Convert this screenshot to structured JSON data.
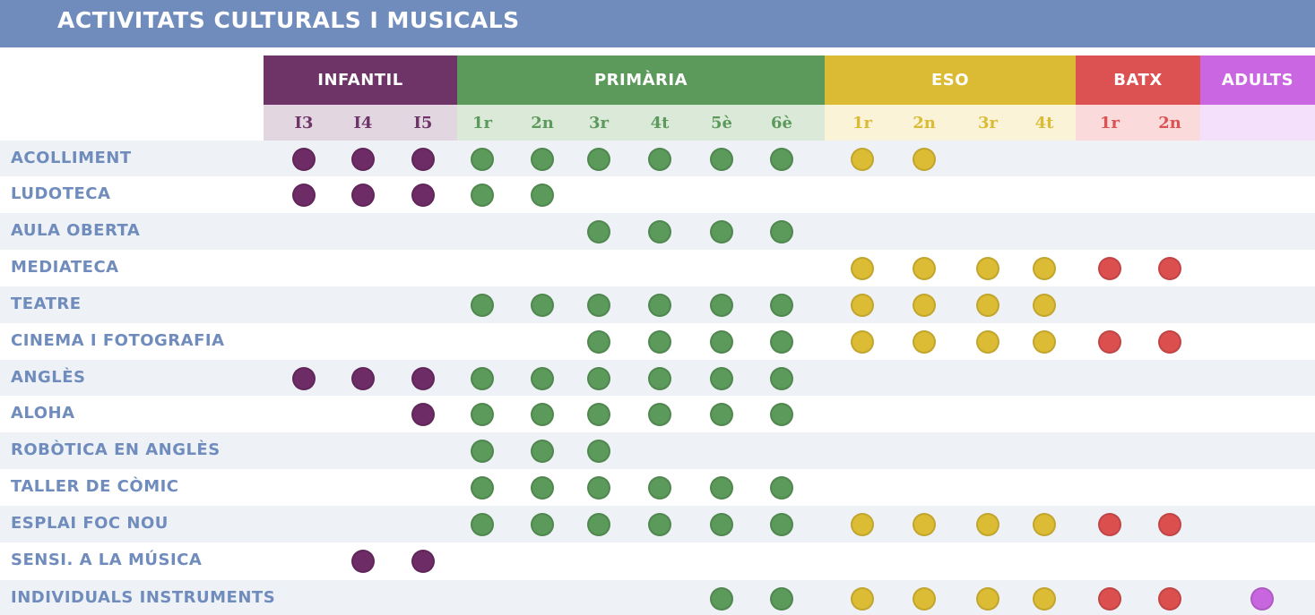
{
  "title": "ACTIVITATS CULTURALS I MUSICALS",
  "colors": {
    "banner": "#6f8cbd",
    "row_alt": "#eef2f7",
    "label_text": "#6f8cbd"
  },
  "groups": [
    {
      "label": "INFANTIL",
      "color": "#6e3468",
      "sub_bg": "#e2d6e1",
      "sub_text": "#6e3468",
      "dot": "#6e2c66"
    },
    {
      "label": "PRIMÀRIA",
      "color": "#5c9a5b",
      "sub_bg": "#dbe9d9",
      "sub_text": "#5c9a5b",
      "dot": "#5b9a5a"
    },
    {
      "label": "ESO",
      "color": "#dbba34",
      "sub_bg": "#faf3d8",
      "sub_text": "#dbba34",
      "dot": "#dcbc34"
    },
    {
      "label": "BATX",
      "color": "#dc5252",
      "sub_bg": "#fadada",
      "sub_text": "#dc5252",
      "dot": "#dc4f4f"
    },
    {
      "label": "ADULTS",
      "color": "#cb66e3",
      "sub_bg": "#f4e0fa",
      "sub_text": "#cb66e3",
      "dot": "#c866e0"
    }
  ],
  "columns": [
    {
      "label": "I3",
      "group": 0
    },
    {
      "label": "I4",
      "group": 0
    },
    {
      "label": "I5",
      "group": 0
    },
    {
      "label": "1r",
      "group": 1
    },
    {
      "label": "2n",
      "group": 1
    },
    {
      "label": "3r",
      "group": 1
    },
    {
      "label": "4t",
      "group": 1
    },
    {
      "label": "5è",
      "group": 1
    },
    {
      "label": "6è",
      "group": 1
    },
    {
      "label": "1r",
      "group": 2
    },
    {
      "label": "2n",
      "group": 2
    },
    {
      "label": "3r",
      "group": 2
    },
    {
      "label": "4t",
      "group": 2
    },
    {
      "label": "1r",
      "group": 3
    },
    {
      "label": "2n",
      "group": 3
    },
    {
      "label": "",
      "group": 4
    }
  ],
  "activities": [
    {
      "name": "ACOLLIMENT",
      "dots": [
        0,
        1,
        2,
        3,
        4,
        5,
        6,
        7,
        8,
        9,
        10
      ]
    },
    {
      "name": "LUDOTECA",
      "dots": [
        0,
        1,
        2,
        3,
        4
      ]
    },
    {
      "name": "AULA OBERTA",
      "dots": [
        5,
        6,
        7,
        8
      ]
    },
    {
      "name": "MEDIATECA",
      "dots": [
        9,
        10,
        11,
        12,
        13,
        14
      ]
    },
    {
      "name": "TEATRE",
      "dots": [
        3,
        4,
        5,
        6,
        7,
        8,
        9,
        10,
        11,
        12
      ]
    },
    {
      "name": "CINEMA I FOTOGRAFIA",
      "dots": [
        5,
        6,
        7,
        8,
        9,
        10,
        11,
        12,
        13,
        14
      ]
    },
    {
      "name": "ANGLÈS",
      "dots": [
        0,
        1,
        2,
        3,
        4,
        5,
        6,
        7,
        8
      ]
    },
    {
      "name": "ALOHA",
      "dots": [
        2,
        3,
        4,
        5,
        6,
        7,
        8
      ]
    },
    {
      "name": "ROBÒTICA EN ANGLÈS",
      "dots": [
        3,
        4,
        5
      ]
    },
    {
      "name": "TALLER DE CÒMIC",
      "dots": [
        3,
        4,
        5,
        6,
        7,
        8
      ]
    },
    {
      "name": "ESPLAI FOC NOU",
      "dots": [
        3,
        4,
        5,
        6,
        7,
        8,
        9,
        10,
        11,
        12,
        13,
        14
      ]
    },
    {
      "name": "SENSI. A LA MÚSICA",
      "dots": [
        1,
        2
      ]
    },
    {
      "name": "INDIVIDUALS INSTRUMENTS",
      "dots": [
        7,
        8,
        9,
        10,
        11,
        12,
        13,
        14,
        15
      ]
    }
  ]
}
